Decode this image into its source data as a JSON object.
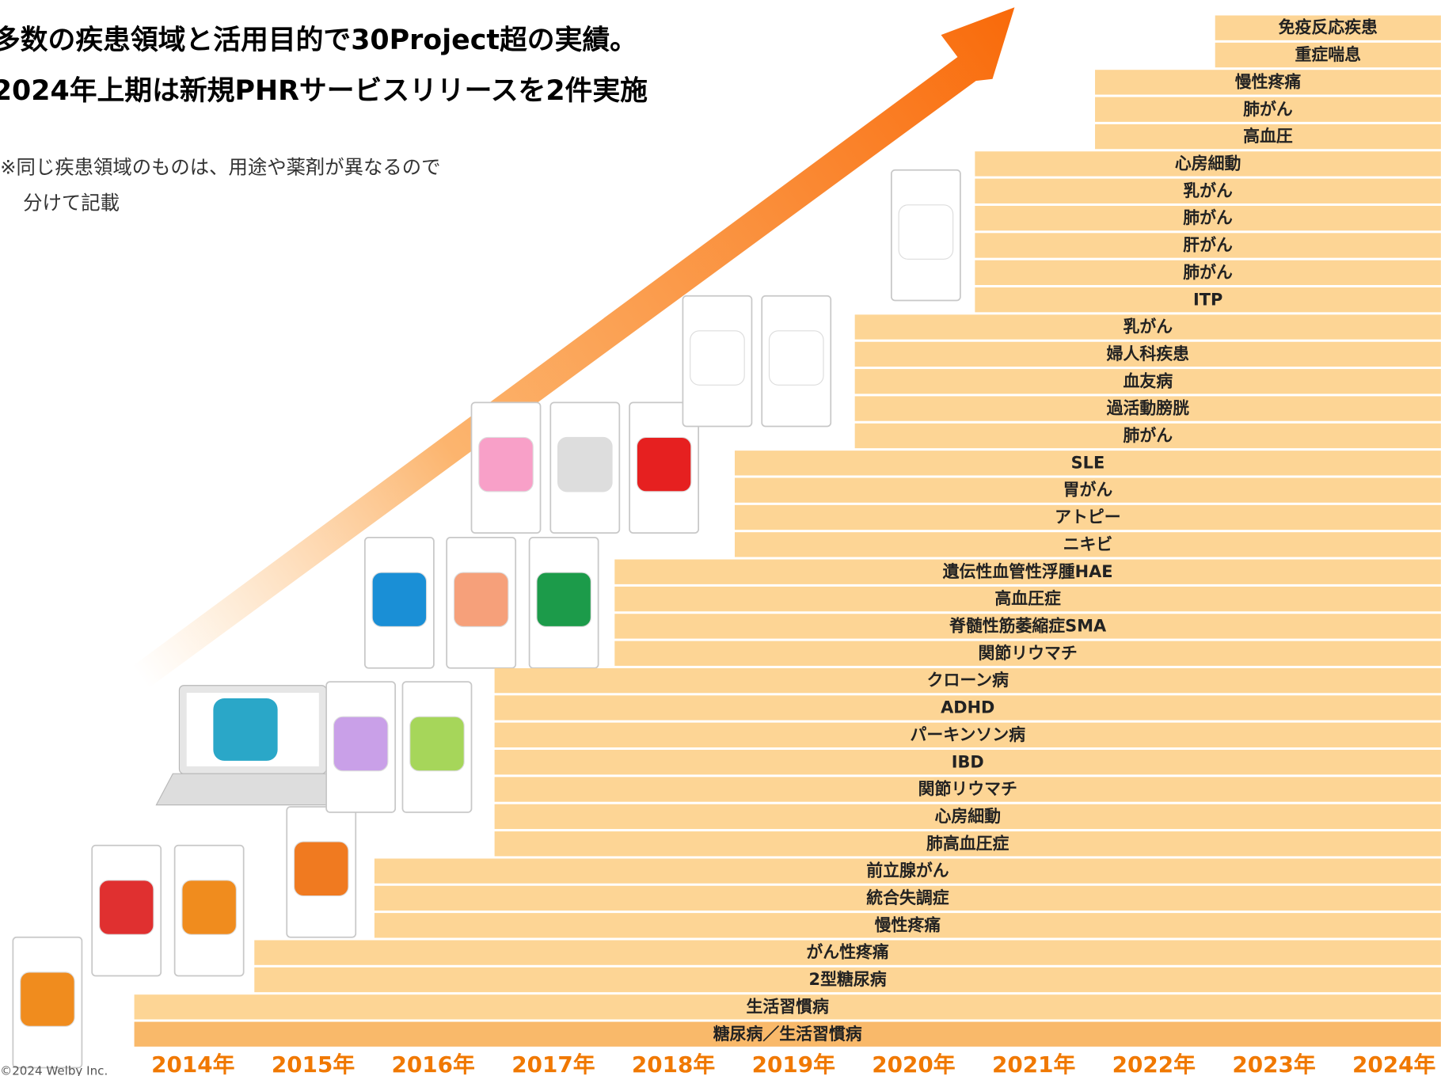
{
  "title_lines": [
    "多数の疾患領域と活用目的で30Project超の実績。",
    "2024年上期は新規PHRサービスリリースを2件実施"
  ],
  "note_lines": [
    "※同じ疾患領域のものは、用途や薬剤が異なるので",
    "分けて記載"
  ],
  "years": [
    {
      "year": "2014年",
      "projects": [
        "糖尿病／生活習慣病",
        "生活習慣病"
      ]
    },
    {
      "year": "2015年",
      "projects": [
        "2型糖尿病",
        "がん性疼痛"
      ]
    },
    {
      "year": "2016年",
      "projects": [
        "慢性疼痛",
        "統合失調症",
        "前立腺がん"
      ]
    },
    {
      "year": "2017年",
      "projects": [
        "肺高血圧症",
        "心房細動",
        "関節リウマチ",
        "IBD",
        "パーキンソン病",
        "ADHD",
        "クローン病"
      ]
    },
    {
      "year": "2018年",
      "projects": [
        "関節リウマチ",
        "脊髄性筋萎縮症SMA",
        "高血圧症",
        "遺伝性血管性浮腫HAE"
      ]
    },
    {
      "year": "2019年",
      "projects": [
        "ニキビ",
        "アトピー",
        "胃がん",
        "SLE"
      ]
    },
    {
      "year": "2020年",
      "projects": [
        "肺がん",
        "過活動膀胱",
        "血友病",
        "婦人科疾患",
        "乳がん"
      ]
    },
    {
      "year": "2021年",
      "projects": [
        "ITP",
        "肺がん",
        "肝がん",
        "肺がん",
        "乳がん",
        "心房細動"
      ]
    },
    {
      "year": "2022年",
      "projects": [
        "高血圧",
        "肺がん",
        "慢性疼痛"
      ]
    },
    {
      "year": "2023年",
      "projects": [
        "重症喘息",
        "免疫反応疾患"
      ]
    },
    {
      "year": "2024年",
      "projects": []
    }
  ],
  "copyright": "©2024 Welby Inc."
}
